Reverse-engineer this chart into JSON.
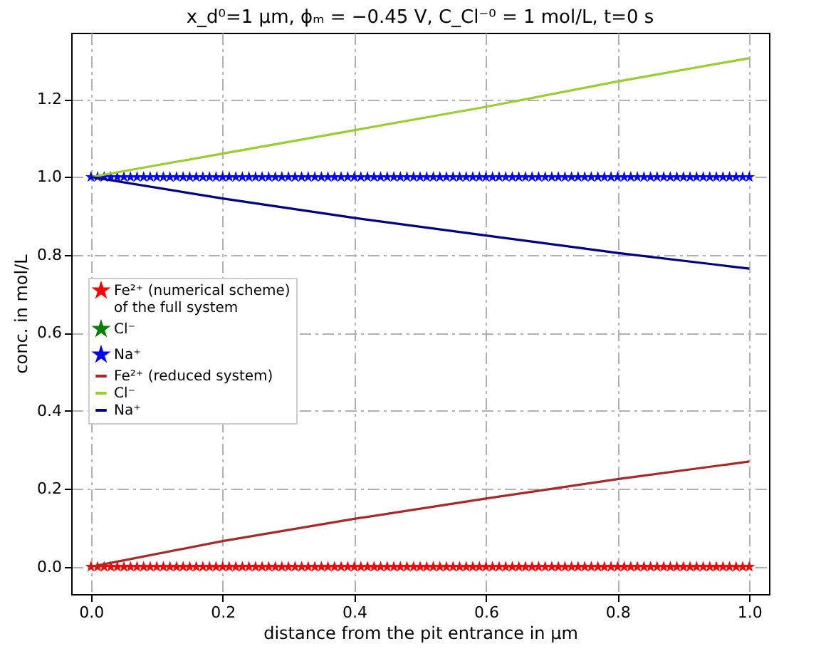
{
  "chart_data": {
    "type": "line",
    "title": "x_d⁰=1 µm, ϕₘ = −0.45 V, C_Cl⁻⁰ = 1 mol/L, t=0 s",
    "xlabel": "distance from the pit entrance in µm",
    "ylabel": "conc. in mol/L",
    "x": [
      0,
      0.01,
      0.02,
      0.03,
      0.04,
      0.05,
      0.06,
      0.07,
      0.08,
      0.09,
      0.1,
      0.11,
      0.12,
      0.13,
      0.14,
      0.15,
      0.16,
      0.17,
      0.18,
      0.19,
      0.2,
      0.21,
      0.22,
      0.23,
      0.24,
      0.25,
      0.26,
      0.27,
      0.28,
      0.29,
      0.3,
      0.31,
      0.32,
      0.33,
      0.34,
      0.35,
      0.36,
      0.37,
      0.38,
      0.39,
      0.4,
      0.41,
      0.42,
      0.43,
      0.44,
      0.45,
      0.46,
      0.47,
      0.48,
      0.49,
      0.5,
      0.51,
      0.52,
      0.53,
      0.54,
      0.55,
      0.56,
      0.57,
      0.58,
      0.59,
      0.6,
      0.61,
      0.62,
      0.63,
      0.64,
      0.65,
      0.66,
      0.67,
      0.68,
      0.69,
      0.7,
      0.71,
      0.72,
      0.73,
      0.74,
      0.75,
      0.76,
      0.77,
      0.78,
      0.79,
      0.8,
      0.81,
      0.82,
      0.83,
      0.84,
      0.85,
      0.86,
      0.87,
      0.88,
      0.89,
      0.9,
      0.91,
      0.92,
      0.93,
      0.94,
      0.95,
      0.96,
      0.97,
      0.98,
      0.99,
      1
    ],
    "series": [
      {
        "name": "Fe²⁺ (numerical scheme)\nof the full system",
        "type": "scatter",
        "marker": "star",
        "color": "#ff0000",
        "values": [
          0,
          0,
          0,
          0,
          0,
          0,
          0,
          0,
          0,
          0,
          0,
          0,
          0,
          0,
          0,
          0,
          0,
          0,
          0,
          0,
          0,
          0,
          0,
          0,
          0,
          0,
          0,
          0,
          0,
          0,
          0,
          0,
          0,
          0,
          0,
          0,
          0,
          0,
          0,
          0,
          0,
          0,
          0,
          0,
          0,
          0,
          0,
          0,
          0,
          0,
          0,
          0,
          0,
          0,
          0,
          0,
          0,
          0,
          0,
          0,
          0,
          0,
          0,
          0,
          0,
          0,
          0,
          0,
          0,
          0,
          0,
          0,
          0,
          0,
          0,
          0,
          0,
          0,
          0,
          0,
          0,
          0,
          0,
          0,
          0,
          0,
          0,
          0,
          0,
          0,
          0,
          0,
          0,
          0,
          0,
          0,
          0,
          0,
          0,
          0,
          0
        ]
      },
      {
        "name": "Cl⁻",
        "type": "scatter",
        "marker": "star",
        "color": "#008000",
        "values": [
          null,
          null,
          null,
          null,
          null,
          null,
          null,
          null,
          null,
          null,
          null,
          null,
          null,
          null,
          null,
          null,
          null,
          null,
          null,
          null,
          null,
          null,
          null,
          null,
          null,
          null,
          null,
          null,
          null,
          null,
          null,
          null,
          null,
          null,
          null,
          null,
          null,
          null,
          null,
          null,
          null,
          null,
          null,
          null,
          null,
          null,
          null,
          null,
          null,
          null,
          null,
          null,
          null,
          null,
          null,
          null,
          null,
          null,
          null,
          null,
          null,
          null,
          null,
          null,
          null,
          null,
          null,
          null,
          null,
          null,
          null,
          null,
          null,
          null,
          null,
          null,
          null,
          null,
          null,
          null,
          null,
          null,
          null,
          null,
          null,
          null,
          null,
          null,
          null,
          null,
          null,
          null,
          null,
          null,
          null,
          null,
          null,
          null,
          null,
          null,
          null
        ]
      },
      {
        "name": "Na⁺",
        "type": "scatter",
        "marker": "star",
        "color": "#0000ff",
        "values": [
          1,
          1,
          1,
          1,
          1,
          1,
          1,
          1,
          1,
          1,
          1,
          1,
          1,
          1,
          1,
          1,
          1,
          1,
          1,
          1,
          1,
          1,
          1,
          1,
          1,
          1,
          1,
          1,
          1,
          1,
          1,
          1,
          1,
          1,
          1,
          1,
          1,
          1,
          1,
          1,
          1,
          1,
          1,
          1,
          1,
          1,
          1,
          1,
          1,
          1,
          1,
          1,
          1,
          1,
          1,
          1,
          1,
          1,
          1,
          1,
          1,
          1,
          1,
          1,
          1,
          1,
          1,
          1,
          1,
          1,
          1,
          1,
          1,
          1,
          1,
          1,
          1,
          1,
          1,
          1,
          1,
          1,
          1,
          1,
          1,
          1,
          1,
          1,
          1,
          1,
          1,
          1,
          1,
          1,
          1,
          1,
          1,
          1,
          1,
          1,
          1
        ]
      },
      {
        "name": "Fe²⁺ (reduced system)",
        "color": "#a52a2a",
        "x": [
          0,
          0.2,
          0.4,
          0.6,
          0.8,
          1
        ],
        "values": [
          0,
          0.066,
          0.123,
          0.175,
          0.225,
          0.27
        ]
      },
      {
        "name": "Cl⁻",
        "color": "#9acd32",
        "x": [
          0,
          0.2,
          0.4,
          0.6,
          0.8,
          1
        ],
        "values": [
          1,
          1.06,
          1.12,
          1.18,
          1.245,
          1.305
        ]
      },
      {
        "name": "Na⁺",
        "color": "#000080",
        "x": [
          0,
          0.2,
          0.4,
          0.6,
          0.8,
          1
        ],
        "values": [
          1,
          0.945,
          0.895,
          0.85,
          0.805,
          0.765
        ]
      }
    ],
    "xlim": [
      -0.03,
      1.03
    ],
    "ylim": [
      -0.07,
      1.37
    ],
    "xticks": [
      {
        "value": 0,
        "label": "0.0"
      },
      0.2,
      0.4,
      0.6,
      0.8,
      {
        "value": 1,
        "label": "1.0"
      }
    ],
    "yticks": [
      {
        "value": 0,
        "label": "0.0"
      },
      0.2,
      0.4,
      0.6,
      0.8,
      {
        "value": 1,
        "label": "1.0"
      },
      1.2
    ],
    "grid": true,
    "legend": "left",
    "line_style": "solid"
  }
}
